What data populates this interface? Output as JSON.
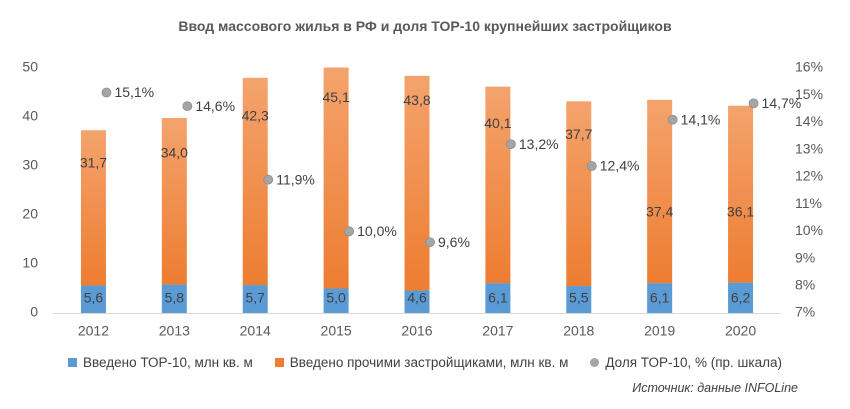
{
  "chart_data": {
    "type": "bar",
    "title": "Ввод массового жилья в РФ и доля ТОР-10 крупнейших застройщиков",
    "categories": [
      "2012",
      "2013",
      "2014",
      "2015",
      "2016",
      "2017",
      "2018",
      "2019",
      "2020"
    ],
    "series": [
      {
        "name": "Введено ТОР-10, млн кв. м",
        "kind": "stacked-bar",
        "color": "#5b9bd5",
        "values": [
          5.6,
          5.8,
          5.7,
          5.0,
          4.6,
          6.1,
          5.5,
          6.1,
          6.2
        ],
        "labels": [
          "5,6",
          "5,8",
          "5,7",
          "5,0",
          "4,6",
          "6,1",
          "5,5",
          "6,1",
          "6,2"
        ]
      },
      {
        "name": "Введено прочими застройщиками, млн кв. м",
        "kind": "stacked-bar",
        "color": "#ed7d31",
        "values": [
          31.7,
          34.0,
          42.3,
          45.1,
          43.8,
          40.1,
          37.7,
          37.4,
          36.1
        ],
        "labels": [
          "31,7",
          "34,0",
          "42,3",
          "45,1",
          "43,8",
          "40,1",
          "37,7",
          "37,4",
          "36,1"
        ]
      },
      {
        "name": "Доля ТОР-10, % (пр. шкала)",
        "kind": "scatter",
        "axis": "right",
        "color": "#a5a5a5",
        "values": [
          15.1,
          14.6,
          11.9,
          10.0,
          9.6,
          13.2,
          12.4,
          14.1,
          14.7
        ],
        "labels": [
          "15,1%",
          "14,6%",
          "11,9%",
          "10,0%",
          "9,6%",
          "13,2%",
          "12,4%",
          "14,1%",
          "14,7%"
        ]
      }
    ],
    "yaxis_left": {
      "min": 0,
      "max": 50,
      "ticks": [
        "0",
        "10",
        "20",
        "30",
        "40",
        "50"
      ]
    },
    "yaxis_right": {
      "min": 7,
      "max": 16,
      "ticks": [
        "7%",
        "8%",
        "9%",
        "10%",
        "11%",
        "12%",
        "13%",
        "14%",
        "15%",
        "16%"
      ]
    },
    "grid": false,
    "legend_position": "bottom",
    "source": "Источник: данные INFOLine"
  }
}
